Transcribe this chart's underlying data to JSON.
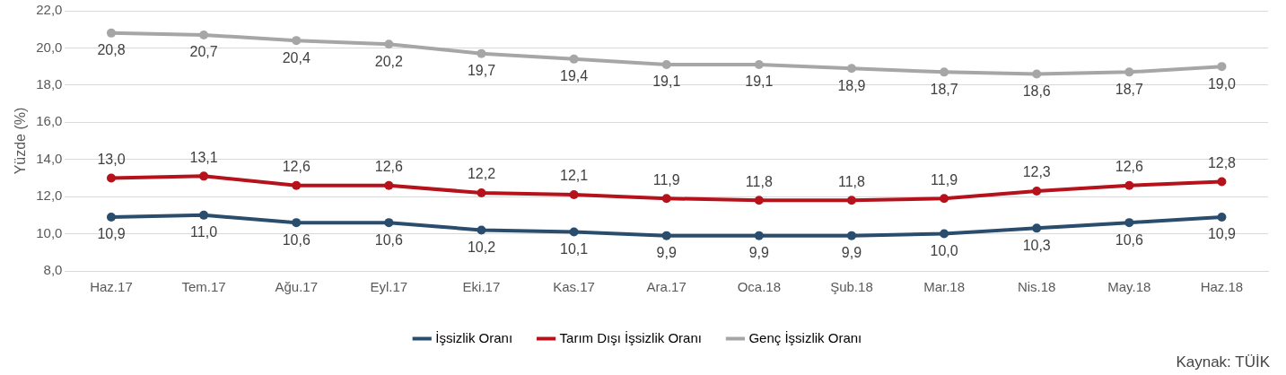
{
  "chart_data": {
    "type": "line",
    "ylabel": "Yüzde (%)",
    "categories": [
      "Haz.17",
      "Tem.17",
      "Ağu.17",
      "Eyl.17",
      "Eki.17",
      "Kas.17",
      "Ara.17",
      "Oca.18",
      "Şub.18",
      "Mar.18",
      "Nis.18",
      "May.18",
      "Haz.18"
    ],
    "series": [
      {
        "name": "İşsizlik Oranı",
        "color": "#2a4d6e",
        "values": [
          10.9,
          11.0,
          10.6,
          10.6,
          10.2,
          10.1,
          9.9,
          9.9,
          9.9,
          10.0,
          10.3,
          10.6,
          10.9
        ],
        "value_labels": [
          "10,9",
          "11,0",
          "10,6",
          "10,6",
          "10,2",
          "10,1",
          "9,9",
          "9,9",
          "9,9",
          "10,0",
          "10,3",
          "10,6",
          "10,9"
        ]
      },
      {
        "name": "Tarım Dışı İşsizlik Oranı",
        "color": "#b5121b",
        "values": [
          13.0,
          13.1,
          12.6,
          12.6,
          12.2,
          12.1,
          11.9,
          11.8,
          11.8,
          11.9,
          12.3,
          12.6,
          12.8
        ],
        "value_labels": [
          "13,0",
          "13,1",
          "12,6",
          "12,6",
          "12,2",
          "12,1",
          "11,9",
          "11,8",
          "11,8",
          "11,9",
          "12,3",
          "12,6",
          "12,8"
        ]
      },
      {
        "name": "Genç İşsizlik Oranı",
        "color": "#a6a6a6",
        "values": [
          20.8,
          20.7,
          20.4,
          20.2,
          19.7,
          19.4,
          19.1,
          19.1,
          18.9,
          18.7,
          18.6,
          18.7,
          19.0
        ],
        "value_labels": [
          "20,8",
          "20,7",
          "20,4",
          "20,2",
          "19,7",
          "19,4",
          "19,1",
          "19,1",
          "18,9",
          "18,7",
          "18,6",
          "18,7",
          "19,0"
        ]
      }
    ],
    "ylim": [
      8,
      22
    ],
    "yticks": [
      {
        "value": 8,
        "label": "8,0"
      },
      {
        "value": 10,
        "label": "10,0"
      },
      {
        "value": 12,
        "label": "12,0"
      },
      {
        "value": 14,
        "label": "14,0"
      },
      {
        "value": 16,
        "label": "16,0"
      },
      {
        "value": 18,
        "label": "18,0"
      },
      {
        "value": 20,
        "label": "20,0"
      },
      {
        "value": 22,
        "label": "22,0"
      }
    ],
    "grid": "y",
    "legend": "bottom",
    "marker": "circle",
    "line_style": "solid",
    "annotations": [
      "Kaynak: TÜİK"
    ]
  }
}
